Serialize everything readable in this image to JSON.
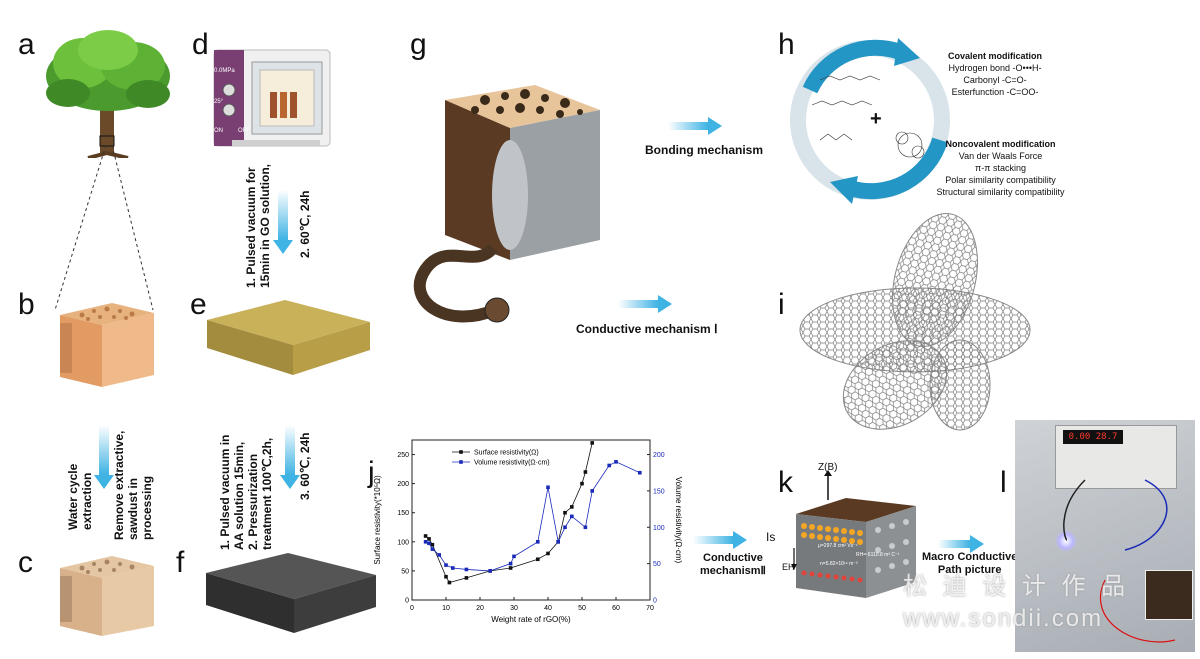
{
  "panels": {
    "a": "a",
    "b": "b",
    "c": "c",
    "d": "d",
    "e": "e",
    "f": "f",
    "g": "g",
    "h": "h",
    "i": "i",
    "j": "j",
    "k": "k",
    "l": "l"
  },
  "steps": {
    "water_cycle": "Water cycle\nextraction",
    "remove_extractive": "Remove extractive,\nsawdust in\nprocessing",
    "vacuum_go": "1. Pulsed vacuum for\n15min in GO solution,",
    "dry_go": "2. 60℃, 24h",
    "vacuum_aa": "1. Pulsed vacuum in\nAA solution 15min,\n2. Pressurization\ntreatment 100℃,2h,",
    "dry_aa": "3. 60℃, 24h"
  },
  "oven": {
    "pressure": "0.0MPa",
    "temp": "25°",
    "on": "ON",
    "off": "OFF"
  },
  "mechanisms": {
    "bonding": "Bonding mechanism",
    "conductive_1": "Conductive mechanism Ⅰ",
    "conductive_2": "Conductive\nmechanismⅡ",
    "macro_path": "Macro Conductive\nPath picture"
  },
  "modification": {
    "covalent_title": "Covalent modification",
    "covalent_items": [
      "Hydrogen bond -O•••H-",
      "Carbonyl -C=O-",
      "Esterfunction -C=OO-"
    ],
    "noncovalent_title": "Noncovalent  modification",
    "noncovalent_items": [
      "Van der Waals Force",
      "π-π stacking",
      "Polar similarity compatibility",
      "Structural similarity compatibility"
    ],
    "plus": "+"
  },
  "hall": {
    "z_axis": "Z(B)",
    "is_label": "Is",
    "eh_label": "EH",
    "line1": "μ=297.8 cm² Vs⁻¹",
    "line2": "RH=-5110.8 m³ C⁻¹",
    "line3": "n=5.82×10¹⁹ m⁻³"
  },
  "meter": {
    "reading": "0.00 28.7"
  },
  "watermark": {
    "line1": "松 迪 设 计 作 品",
    "line2": "www.sondii.com"
  },
  "chart_data": {
    "type": "line",
    "title": "",
    "xlabel": "Weight rate of rGO(%)",
    "ylabel": "Surface resistivity(*10⁵Ω)",
    "y2label": "Volume resistivity(Ω·cm)",
    "xlim": [
      0,
      70
    ],
    "ylim": [
      0,
      275
    ],
    "y2lim": [
      0,
      220
    ],
    "xticks": [
      0,
      10,
      20,
      30,
      40,
      50,
      60,
      70
    ],
    "yticks": [
      0,
      50,
      100,
      150,
      200,
      250
    ],
    "y2ticks": [
      0,
      50,
      100,
      150,
      200
    ],
    "legend_position": "top-left",
    "series": [
      {
        "name": "Surface resistivity(Ω)",
        "axis": "left",
        "color": "#111111",
        "marker": "square",
        "x": [
          4,
          5,
          6,
          10,
          11,
          16,
          23,
          29,
          37,
          40,
          43,
          45,
          47,
          50,
          51,
          53
        ],
        "y": [
          110,
          105,
          95,
          40,
          30,
          38,
          50,
          55,
          70,
          80,
          100,
          150,
          160,
          200,
          220,
          270
        ]
      },
      {
        "name": "Volume resistivity(Ω·cm)",
        "axis": "right",
        "color": "#1a2ab8",
        "marker": "square",
        "x": [
          4,
          5,
          6,
          8,
          10,
          12,
          16,
          23,
          29,
          30,
          37,
          40,
          43,
          45,
          47,
          51,
          53,
          58,
          60,
          67
        ],
        "y": [
          80,
          78,
          70,
          62,
          48,
          44,
          42,
          40,
          50,
          60,
          80,
          155,
          80,
          100,
          115,
          100,
          150,
          185,
          190,
          175
        ]
      }
    ]
  }
}
